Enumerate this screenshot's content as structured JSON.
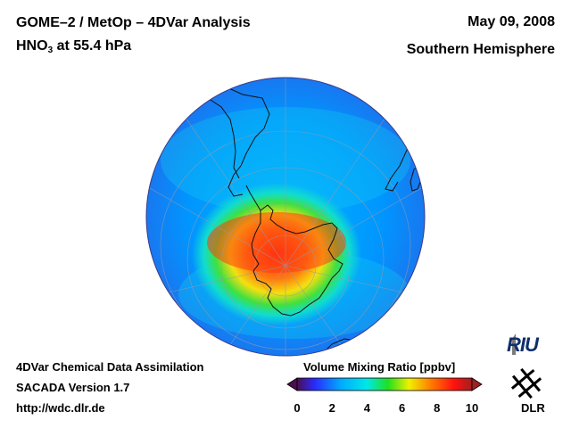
{
  "header": {
    "title_line1": "GOME–2 / MetOp – 4DVar Analysis",
    "species": "HNO",
    "species_sub": "3",
    "level": " at 55.4 hPa",
    "date": "May 09, 2008",
    "hemisphere": "Southern Hemisphere"
  },
  "footer": {
    "line1": "4DVar Chemical Data Assimilation",
    "line2": "SACADA Version 1.7",
    "line3": "http://wdc.dlr.de"
  },
  "colorbar": {
    "title": "Volume Mixing Ratio [ppbv]",
    "ticks": [
      "0",
      "2",
      "4",
      "6",
      "8",
      "10"
    ],
    "min": 0,
    "max": 10,
    "colors": [
      "#4b0f4f",
      "#2a2aff",
      "#00aaff",
      "#00e8e8",
      "#20e020",
      "#f0f000",
      "#ff8000",
      "#ff1010",
      "#a02020"
    ]
  },
  "logos": {
    "riu": "RIU",
    "dlr": "DLR"
  },
  "map_data": {
    "projection": "orthographic-south-polar",
    "center": "South Pole",
    "field": "HNO3 volume mixing ratio",
    "max_region": "over Antarctica",
    "max_value_ppbv": 8.5,
    "background_value_ppbv": 3
  }
}
